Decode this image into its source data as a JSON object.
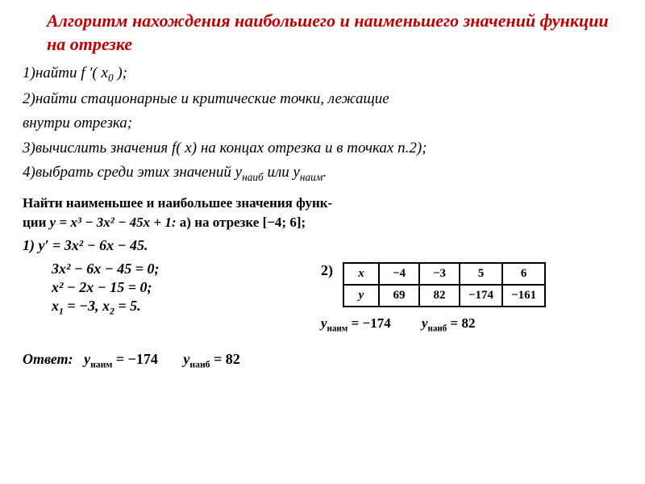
{
  "title": "Алгоритм нахождения наибольшего и наименьшего значений функции на отрезке",
  "steps": {
    "s1a": "1)найти ",
    "s1b": "f ′( x",
    "s1_sub": "0",
    "s1c": " );",
    "s2": "2)найти стационарные и критические точки, лежащие",
    "s2b": "внутри отрезка;",
    "s3a": "3)вычислить значения ",
    "s3f": "f( x) ",
    "s3b": "на концах отрезка и в точках п.2);",
    "s4a": "4)выбрать среди этих значений y",
    "s4sub1": "наиб",
    "s4b": " или y",
    "s4sub2": "наим",
    "s4c": "."
  },
  "problem": {
    "line1a": "Найти наименьшее и наибольшее значения функ-",
    "line2a": "ции ",
    "line2b": "y = x³ − 3x² − 45x + 1: ",
    "line2c": "а) на отрезке  [−4; 6];"
  },
  "derivative": {
    "label": "1) ",
    "expr": "y′ = 3x² − 6x − 45."
  },
  "calc": {
    "eq1": "3x² − 6x − 45 = 0;",
    "eq2": "x² − 2x − 15 = 0;",
    "eq3a": "x",
    "eq3sub1": "1",
    "eq3b": " = −3,   x",
    "eq3sub2": "2",
    "eq3c": " = 5."
  },
  "table": {
    "label": "2)",
    "header": [
      "x",
      "−4",
      "−3",
      "5",
      "6"
    ],
    "row": [
      "y",
      "69",
      "82",
      "−174",
      "−161"
    ]
  },
  "res": {
    "ymin_lbl": "y",
    "ymin_sub": "наим",
    "ymin_eq": " = −174",
    "ymax_lbl": "y",
    "ymax_sub": "наиб",
    "ymax_eq": " = 82"
  },
  "answer": {
    "label": "Ответ:",
    "min_lbl": "y",
    "min_sub": "наим",
    "min_eq": " = −174",
    "max_lbl": "y",
    "max_sub": "наиб",
    "max_eq": " = 82"
  }
}
